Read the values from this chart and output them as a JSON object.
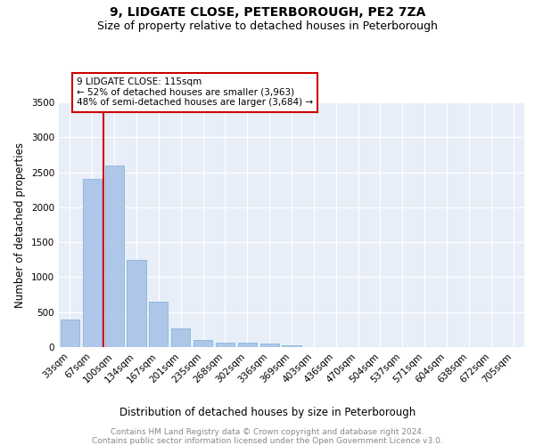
{
  "title": "9, LIDGATE CLOSE, PETERBOROUGH, PE2 7ZA",
  "subtitle": "Size of property relative to detached houses in Peterborough",
  "xlabel": "Distribution of detached houses by size in Peterborough",
  "ylabel": "Number of detached properties",
  "categories": [
    "33sqm",
    "67sqm",
    "100sqm",
    "134sqm",
    "167sqm",
    "201sqm",
    "235sqm",
    "268sqm",
    "302sqm",
    "336sqm",
    "369sqm",
    "403sqm",
    "436sqm",
    "470sqm",
    "504sqm",
    "537sqm",
    "571sqm",
    "604sqm",
    "638sqm",
    "672sqm",
    "705sqm"
  ],
  "values": [
    400,
    2400,
    2600,
    1250,
    650,
    265,
    105,
    65,
    60,
    45,
    30,
    0,
    0,
    0,
    0,
    0,
    0,
    0,
    0,
    0,
    0
  ],
  "bar_color": "#aec6e8",
  "bar_edge_color": "#7aafd4",
  "annotation_text": "9 LIDGATE CLOSE: 115sqm\n← 52% of detached houses are smaller (3,963)\n48% of semi-detached houses are larger (3,684) →",
  "annotation_box_color": "#ffffff",
  "annotation_border_color": "#cc0000",
  "vline_color": "#cc0000",
  "vline_x": 1.5,
  "ylim": [
    0,
    3500
  ],
  "yticks": [
    0,
    500,
    1000,
    1500,
    2000,
    2500,
    3000,
    3500
  ],
  "background_color": "#e8eef8",
  "grid_color": "#ffffff",
  "footer_text": "Contains HM Land Registry data © Crown copyright and database right 2024.\nContains public sector information licensed under the Open Government Licence v3.0.",
  "title_fontsize": 10,
  "subtitle_fontsize": 9,
  "tick_fontsize": 7.5,
  "ylabel_fontsize": 8.5,
  "xlabel_fontsize": 8.5,
  "annotation_fontsize": 7.5,
  "footer_fontsize": 6.5
}
